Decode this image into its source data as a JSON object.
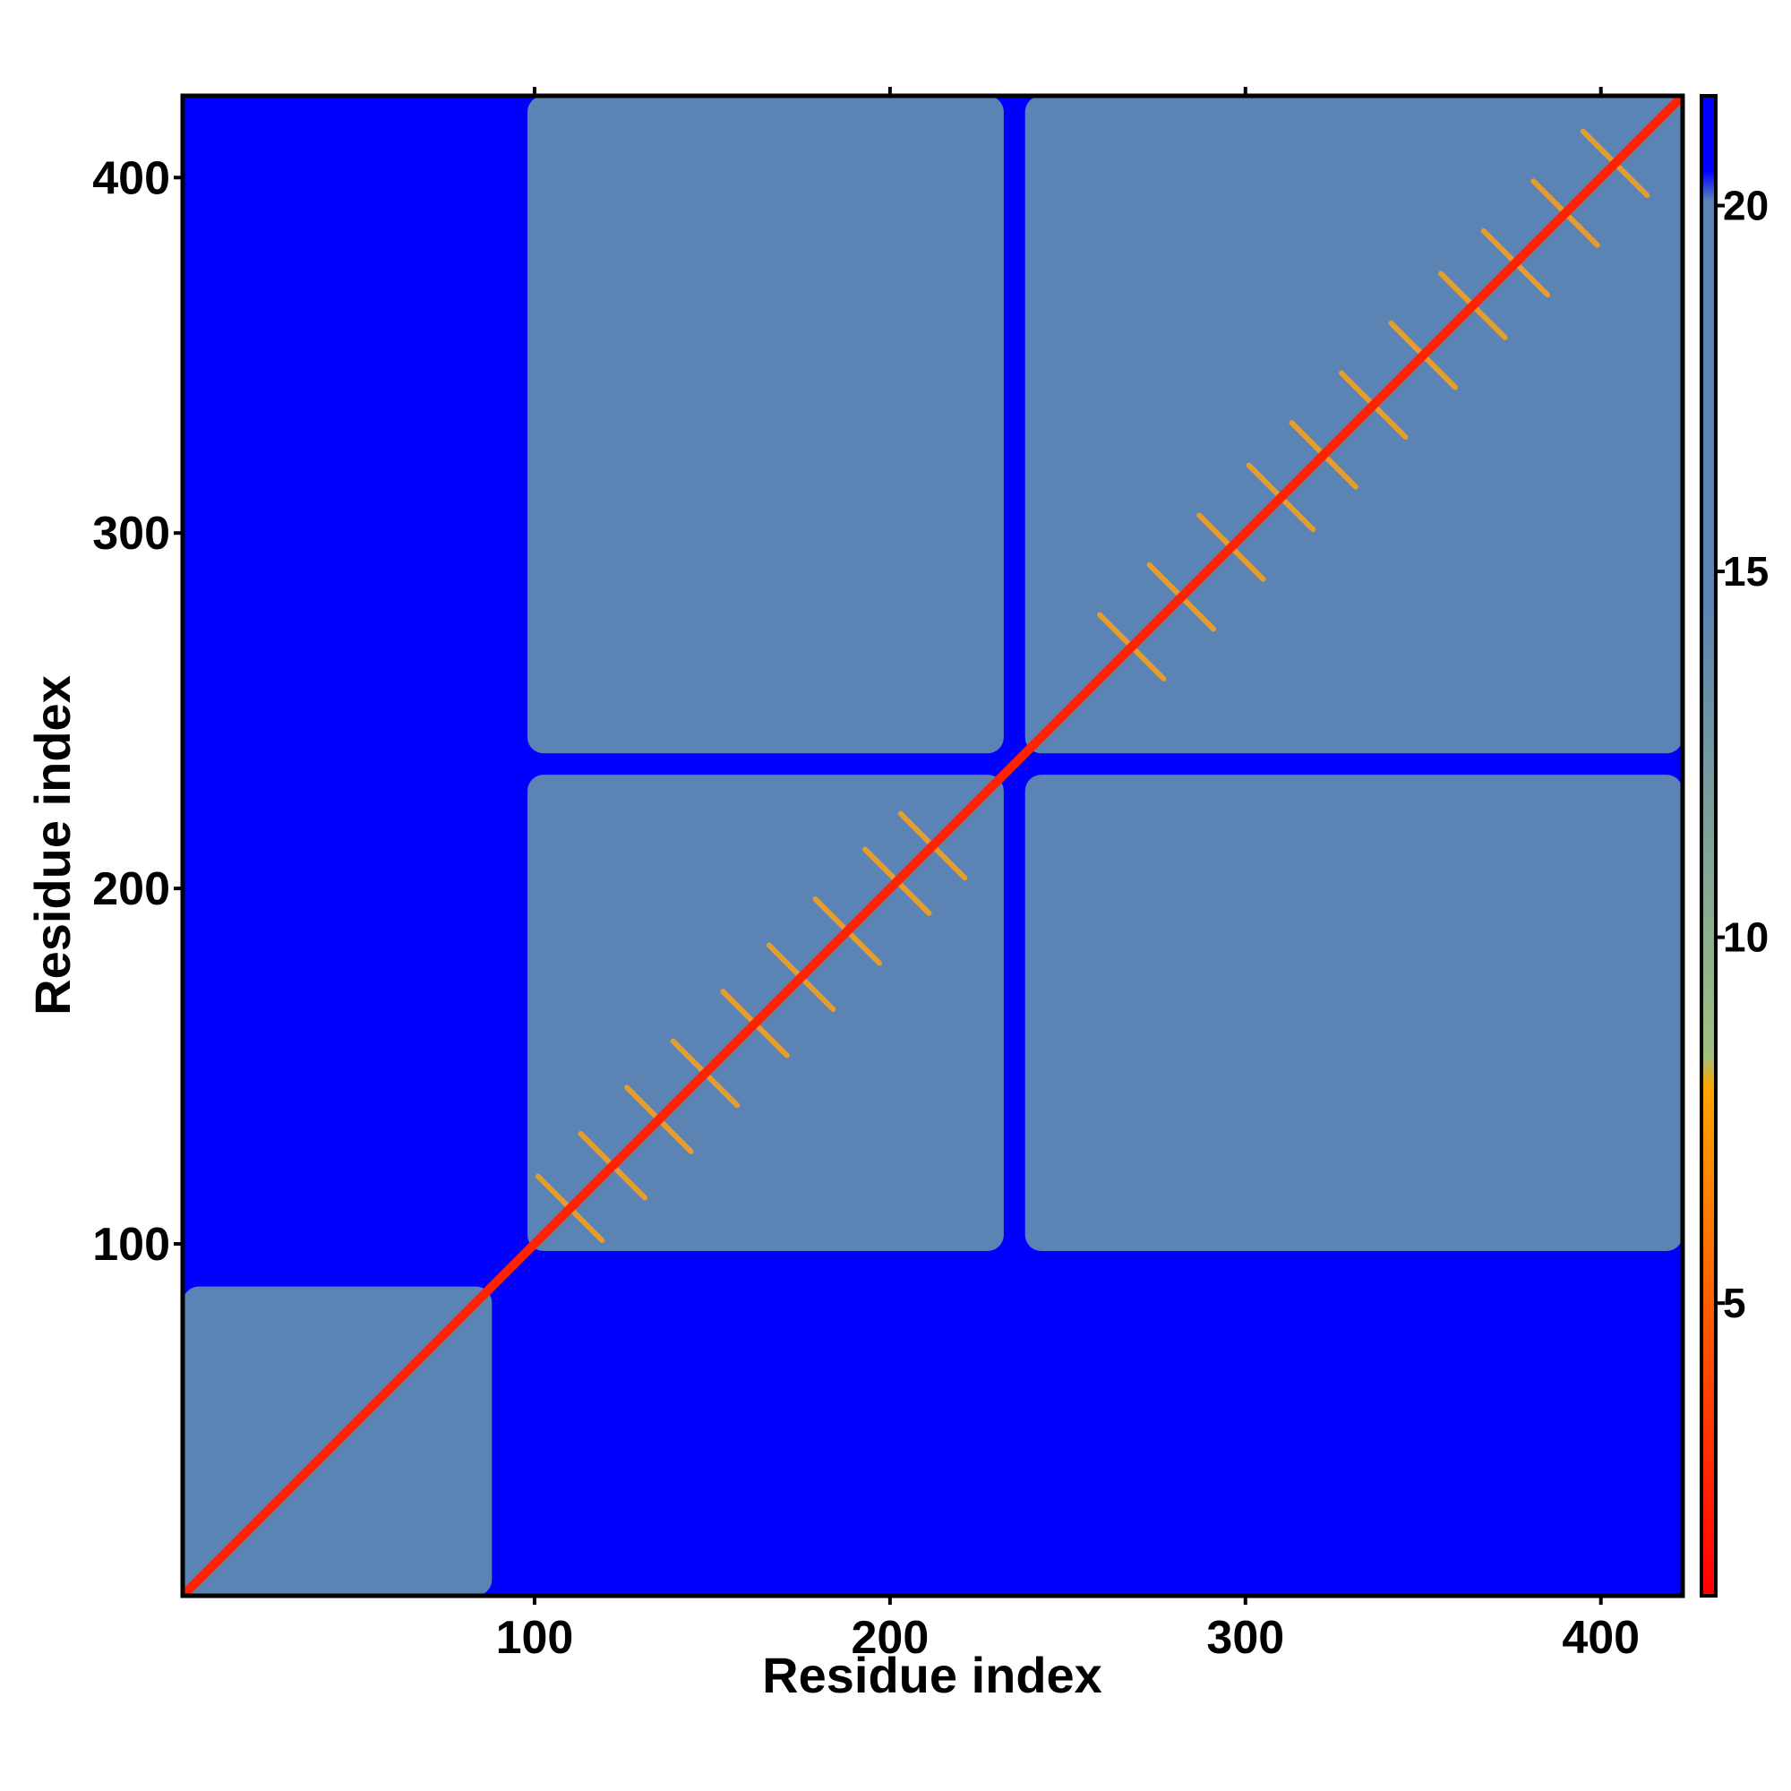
{
  "chart_data": {
    "type": "heatmap",
    "title": "",
    "xlabel": "Residue index",
    "ylabel": "Residue index",
    "n_residues": 423,
    "xlim": [
      1,
      423
    ],
    "ylim": [
      1,
      423
    ],
    "x_ticks": [
      100,
      200,
      300,
      400
    ],
    "y_ticks": [
      100,
      200,
      300,
      400
    ],
    "x_tick_labels": [
      "100",
      "200",
      "300",
      "400"
    ],
    "y_tick_labels": [
      "100",
      "200",
      "300",
      "400"
    ],
    "colorbar": {
      "range": [
        1,
        21.5
      ],
      "ticks": [
        5,
        10,
        15,
        20
      ],
      "tick_labels": [
        "5",
        "10",
        "15",
        "20"
      ],
      "colors": [
        {
          "from": 1,
          "to": 8,
          "color": "#ff0000",
          "to_color": "#ffa500",
          "note": "red to orange"
        },
        {
          "from": 8,
          "to": 15,
          "color": "#9fbf7f",
          "to_color": "#5b84b4"
        },
        {
          "from": 15,
          "to": 20.5,
          "color": "#5b84b4",
          "to_color": "#5b84b4"
        },
        {
          "from": 20.5,
          "to": 21.5,
          "color": "#0000ff",
          "to_color": "#0000ff"
        }
      ]
    },
    "background_color": "#0000ff",
    "domains": [
      {
        "start": 1,
        "end": 88
      },
      {
        "start": 98,
        "end": 232
      },
      {
        "start": 238,
        "end": 423
      }
    ],
    "interacting_domain_pairs": [
      {
        "a": [
          98,
          232
        ],
        "b": [
          238,
          423
        ]
      }
    ],
    "secondary_structure_bands": [
      {
        "center": 110
      },
      {
        "center": 122
      },
      {
        "center": 135
      },
      {
        "center": 148
      },
      {
        "center": 162
      },
      {
        "center": 175
      },
      {
        "center": 188
      },
      {
        "center": 202
      },
      {
        "center": 212
      },
      {
        "center": 268
      },
      {
        "center": 282
      },
      {
        "center": 296
      },
      {
        "center": 310
      },
      {
        "center": 322
      },
      {
        "center": 336
      },
      {
        "center": 350
      },
      {
        "center": 364
      },
      {
        "center": 376
      },
      {
        "center": 390
      },
      {
        "center": 404
      }
    ],
    "grid": false,
    "legend": "colorbar right"
  }
}
